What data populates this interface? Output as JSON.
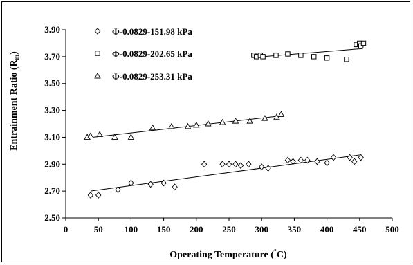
{
  "chart_data": {
    "type": "scatter",
    "xlabel": "Operating Temperature (°C)",
    "ylabel": "Entrainment Ratio (Rm)",
    "xlim": [
      0,
      500
    ],
    "ylim": [
      2.5,
      3.9
    ],
    "xticks": [
      "0",
      "50",
      "100",
      "150",
      "200",
      "250",
      "300",
      "350",
      "400",
      "450",
      "500"
    ],
    "yticks": [
      "2.50",
      "2.70",
      "2.90",
      "3.10",
      "3.30",
      "3.50",
      "3.70",
      "3.90"
    ],
    "grid": false,
    "legend_position": "top-left",
    "series": [
      {
        "name": "Φ-0.0829-151.98 kPa",
        "marker": "diamond",
        "trendline": {
          "x": [
            38,
            452
          ],
          "y": [
            2.7,
            2.97
          ]
        },
        "points": [
          {
            "x": 38,
            "y": 2.67
          },
          {
            "x": 50,
            "y": 2.67
          },
          {
            "x": 80,
            "y": 2.71
          },
          {
            "x": 100,
            "y": 2.76
          },
          {
            "x": 130,
            "y": 2.75
          },
          {
            "x": 150,
            "y": 2.76
          },
          {
            "x": 167,
            "y": 2.73
          },
          {
            "x": 212,
            "y": 2.9
          },
          {
            "x": 240,
            "y": 2.9
          },
          {
            "x": 250,
            "y": 2.9
          },
          {
            "x": 260,
            "y": 2.9
          },
          {
            "x": 268,
            "y": 2.89
          },
          {
            "x": 280,
            "y": 2.9
          },
          {
            "x": 300,
            "y": 2.88
          },
          {
            "x": 310,
            "y": 2.87
          },
          {
            "x": 340,
            "y": 2.93
          },
          {
            "x": 348,
            "y": 2.92
          },
          {
            "x": 360,
            "y": 2.93
          },
          {
            "x": 370,
            "y": 2.93
          },
          {
            "x": 385,
            "y": 2.92
          },
          {
            "x": 400,
            "y": 2.91
          },
          {
            "x": 410,
            "y": 2.95
          },
          {
            "x": 435,
            "y": 2.95
          },
          {
            "x": 442,
            "y": 2.92
          },
          {
            "x": 452,
            "y": 2.95
          }
        ]
      },
      {
        "name": "Φ-0.0829-202.65 kPa",
        "marker": "square",
        "trendline": {
          "x": [
            288,
            455
          ],
          "y": [
            3.695,
            3.76
          ]
        },
        "points": [
          {
            "x": 288,
            "y": 3.71
          },
          {
            "x": 292,
            "y": 3.7
          },
          {
            "x": 298,
            "y": 3.71
          },
          {
            "x": 302,
            "y": 3.7
          },
          {
            "x": 322,
            "y": 3.71
          },
          {
            "x": 340,
            "y": 3.72
          },
          {
            "x": 360,
            "y": 3.71
          },
          {
            "x": 380,
            "y": 3.7
          },
          {
            "x": 400,
            "y": 3.69
          },
          {
            "x": 430,
            "y": 3.68
          },
          {
            "x": 445,
            "y": 3.79
          },
          {
            "x": 450,
            "y": 3.8
          },
          {
            "x": 452,
            "y": 3.78
          },
          {
            "x": 456,
            "y": 3.8
          }
        ]
      },
      {
        "name": "Φ-0.0829-253.31 kPa",
        "marker": "triangle",
        "trendline": {
          "x": [
            33,
            330
          ],
          "y": [
            3.095,
            3.26
          ]
        },
        "points": [
          {
            "x": 33,
            "y": 3.1
          },
          {
            "x": 38,
            "y": 3.11
          },
          {
            "x": 52,
            "y": 3.12
          },
          {
            "x": 75,
            "y": 3.1
          },
          {
            "x": 100,
            "y": 3.1
          },
          {
            "x": 133,
            "y": 3.17
          },
          {
            "x": 162,
            "y": 3.18
          },
          {
            "x": 187,
            "y": 3.18
          },
          {
            "x": 200,
            "y": 3.19
          },
          {
            "x": 218,
            "y": 3.2
          },
          {
            "x": 240,
            "y": 3.21
          },
          {
            "x": 260,
            "y": 3.22
          },
          {
            "x": 282,
            "y": 3.22
          },
          {
            "x": 305,
            "y": 3.24
          },
          {
            "x": 323,
            "y": 3.25
          },
          {
            "x": 330,
            "y": 3.27
          }
        ]
      }
    ]
  }
}
